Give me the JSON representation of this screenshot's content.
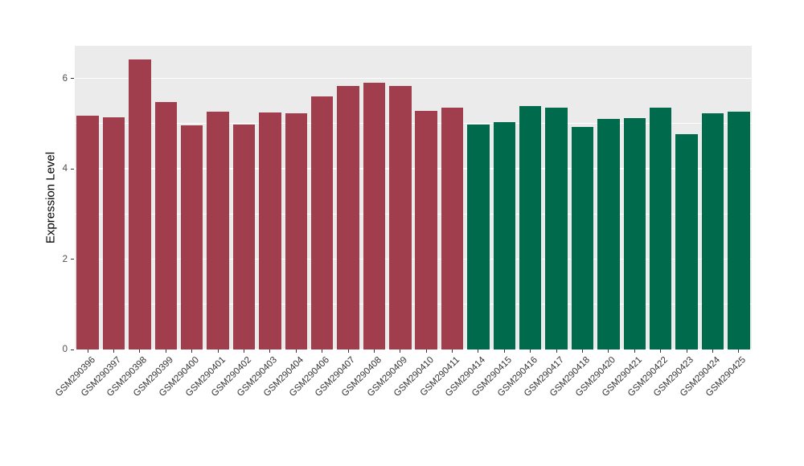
{
  "chart_data": {
    "type": "bar",
    "title": "",
    "xlabel": "",
    "ylabel": "Expression Level",
    "ylim": [
      0,
      6.72
    ],
    "yticks": [
      0,
      2,
      4,
      6
    ],
    "minor_gridlines": [
      1,
      3,
      5
    ],
    "grid": true,
    "legend": "none",
    "panel_background": "#EBEBEB",
    "gridline_color": "#FFFFFF",
    "categories": [
      "GSM290396",
      "GSM290397",
      "GSM290398",
      "GSM290399",
      "GSM290400",
      "GSM290401",
      "GSM290402",
      "GSM290403",
      "GSM290404",
      "GSM290406",
      "GSM290407",
      "GSM290408",
      "GSM290409",
      "GSM290410",
      "GSM290411",
      "GSM290414",
      "GSM290415",
      "GSM290416",
      "GSM290417",
      "GSM290418",
      "GSM290420",
      "GSM290421",
      "GSM290422",
      "GSM290423",
      "GSM290424",
      "GSM290425"
    ],
    "values": [
      5.17,
      5.13,
      6.41,
      5.47,
      4.96,
      5.26,
      4.97,
      5.24,
      5.22,
      5.6,
      5.84,
      5.9,
      5.83,
      5.28,
      5.36,
      4.97,
      5.03,
      5.38,
      5.35,
      4.92,
      5.1,
      5.12,
      5.35,
      4.76,
      5.22,
      5.26
    ],
    "groups": [
      "A",
      "A",
      "A",
      "A",
      "A",
      "A",
      "A",
      "A",
      "A",
      "A",
      "A",
      "A",
      "A",
      "A",
      "A",
      "B",
      "B",
      "B",
      "B",
      "B",
      "B",
      "B",
      "B",
      "B",
      "B",
      "B"
    ],
    "group_colors": {
      "A": "#A03E4E",
      "B": "#006B4C"
    }
  }
}
